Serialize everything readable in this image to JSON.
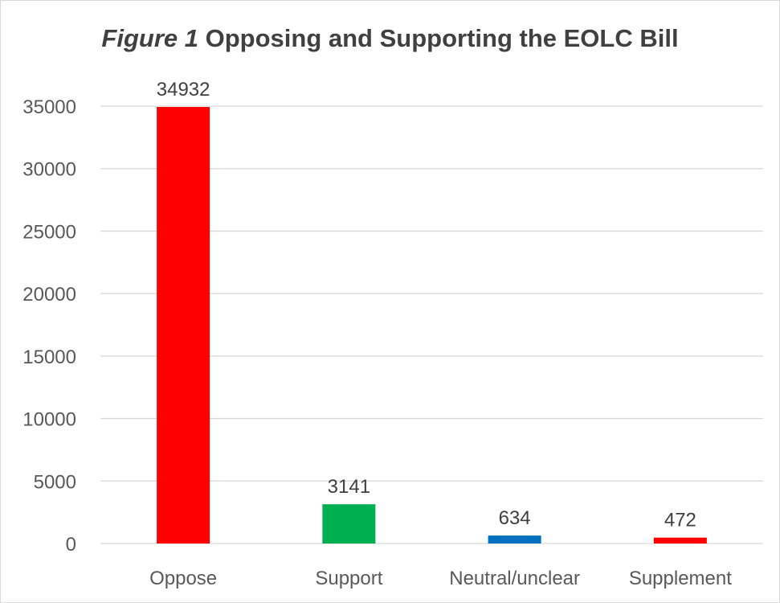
{
  "chart_data": {
    "type": "bar",
    "title_prefix": "Figure 1",
    "title_main": "Opposing and Supporting the EOLC Bill",
    "categories": [
      "Oppose",
      "Support",
      "Neutral/unclear",
      "Supplement"
    ],
    "values": [
      34932,
      3141,
      634,
      472
    ],
    "colors": [
      "#ff0000",
      "#00b050",
      "#0070c0",
      "#ff0000"
    ],
    "ylim": [
      0,
      35000
    ],
    "yticks": [
      0,
      5000,
      10000,
      15000,
      20000,
      25000,
      30000,
      35000
    ],
    "grid": true,
    "legend": "none"
  }
}
